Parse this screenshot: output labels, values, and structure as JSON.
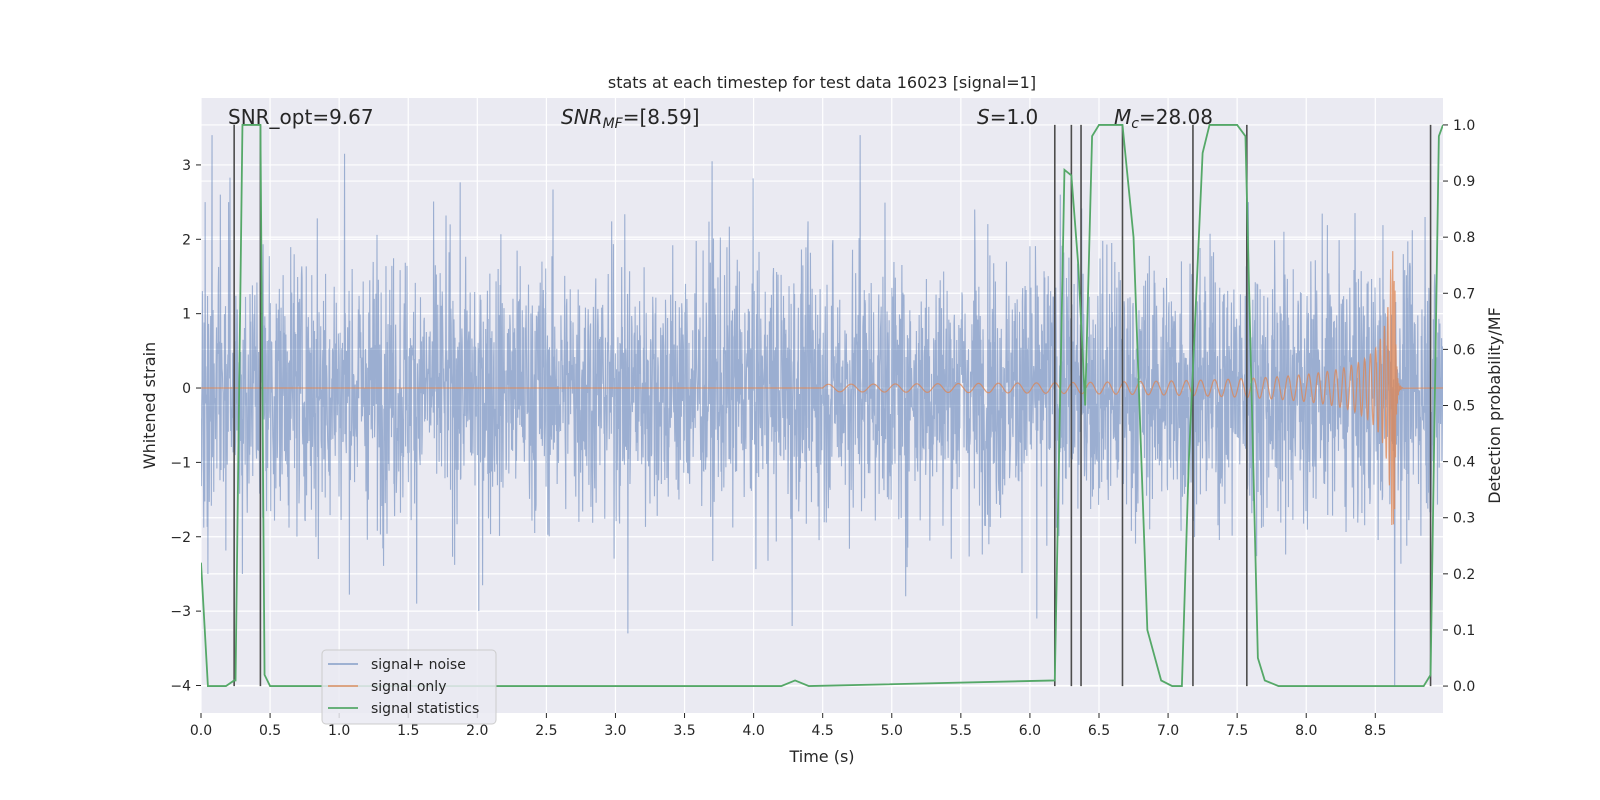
{
  "chart_data": {
    "type": "line",
    "title": "stats at each timestep for test data 16023 [signal=1]",
    "xlabel": "Time (s)",
    "ylabel": "Whitened strain",
    "y2label": "Detection probability/MF",
    "xlim": [
      0.0,
      8.99
    ],
    "ylim": [
      -4.37,
      3.9
    ],
    "y2lim": [
      -0.048,
      1.048
    ],
    "xticks": [
      "0.0",
      "0.5",
      "1.0",
      "1.5",
      "2.0",
      "2.5",
      "3.0",
      "3.5",
      "4.0",
      "4.5",
      "5.0",
      "5.5",
      "6.0",
      "6.5",
      "7.0",
      "7.5",
      "8.0",
      "8.5"
    ],
    "xtick_values": [
      0.0,
      0.5,
      1.0,
      1.5,
      2.0,
      2.5,
      3.0,
      3.5,
      4.0,
      4.5,
      5.0,
      5.5,
      6.0,
      6.5,
      7.0,
      7.5,
      8.0,
      8.5
    ],
    "yticks": [
      "3",
      "2",
      "1",
      "0",
      "−1",
      "−2",
      "−3",
      "−4"
    ],
    "ytick_values": [
      3,
      2,
      1,
      0,
      -1,
      -2,
      -3,
      -4
    ],
    "y2ticks": [
      "1.0",
      "0.9",
      "0.8",
      "0.7",
      "0.6",
      "0.5",
      "0.4",
      "0.3",
      "0.2",
      "0.1",
      "0.0"
    ],
    "y2tick_values": [
      1.0,
      0.9,
      0.8,
      0.7,
      0.6,
      0.5,
      0.4,
      0.3,
      0.2,
      0.1,
      0.0
    ],
    "annotations": {
      "snr_opt": "SNR_opt=9.67",
      "snr_mf_symbol": "SNR",
      "snr_mf_sub": "MF",
      "snr_mf_value": "=[8.59]",
      "s_symbol": "S",
      "s_value": "=1.0",
      "mc_symbol": "M",
      "mc_sub": "c",
      "mc_value": "=28.08"
    },
    "legend": {
      "placement": "lower-left",
      "entries": [
        "signal+ noise",
        "signal only",
        "signal statistics"
      ]
    },
    "series": [
      {
        "name": "signal+ noise",
        "color": "#4c72b0",
        "kind": "noise",
        "approx_envelope": 2.0,
        "peaks": [
          {
            "x": 0.03,
            "y": 2.5
          },
          {
            "x": 0.08,
            "y": 3.4
          },
          {
            "x": 0.14,
            "y": 2.6
          },
          {
            "x": 0.2,
            "y": 2.5
          },
          {
            "x": 0.3,
            "y": 3.5
          },
          {
            "x": 0.43,
            "y": 3.5
          },
          {
            "x": 1.04,
            "y": 3.15
          },
          {
            "x": 3.7,
            "y": 3.05
          },
          {
            "x": 4.77,
            "y": 3.4
          },
          {
            "x": 5.6,
            "y": 2.4
          },
          {
            "x": 6.05,
            "y": 3.5
          },
          {
            "x": 6.22,
            "y": 2.6
          },
          {
            "x": 7.58,
            "y": 2.5
          },
          {
            "x": 8.86,
            "y": 2.3
          },
          {
            "x": 3.09,
            "y": -3.3
          },
          {
            "x": 4.28,
            "y": -3.2
          },
          {
            "x": 2.01,
            "y": -3.0
          },
          {
            "x": 1.56,
            "y": -2.9
          },
          {
            "x": 8.64,
            "y": -4.0
          },
          {
            "x": 0.05,
            "y": -2.5
          },
          {
            "x": 0.3,
            "y": -2.5
          },
          {
            "x": 5.1,
            "y": -2.8
          },
          {
            "x": 6.05,
            "y": -3.1
          },
          {
            "x": 0.85,
            "y": -2.3
          }
        ]
      },
      {
        "name": "signal only",
        "color": "#dd8452",
        "kind": "chirp",
        "start_x": 4.5,
        "merger_x": 8.64,
        "peak_amplitude": 1.85
      },
      {
        "name": "signal statistics",
        "color": "#55a868",
        "axis": "y2",
        "x": [
          0.0,
          0.05,
          0.18,
          0.24,
          0.25,
          0.3,
          0.38,
          0.43,
          0.46,
          0.5,
          4.2,
          4.3,
          4.4,
          6.18,
          6.25,
          6.3,
          6.35,
          6.4,
          6.45,
          6.5,
          6.6,
          6.67,
          6.75,
          6.85,
          6.95,
          7.03,
          7.1,
          7.15,
          7.25,
          7.3,
          7.4,
          7.5,
          7.56,
          7.65,
          7.7,
          7.8,
          8.0,
          8.5,
          8.85,
          8.9,
          8.96,
          8.99
        ],
        "values": [
          0.22,
          0.0,
          0.0,
          0.01,
          0.01,
          1.0,
          1.0,
          1.0,
          0.02,
          0.0,
          0.0,
          0.01,
          0.0,
          0.01,
          0.92,
          0.91,
          0.75,
          0.5,
          0.98,
          1.0,
          1.0,
          1.0,
          0.8,
          0.1,
          0.01,
          0.0,
          0.0,
          0.4,
          0.95,
          1.0,
          1.0,
          1.0,
          0.98,
          0.05,
          0.01,
          0.0,
          0.0,
          0.0,
          0.0,
          0.02,
          0.98,
          1.0
        ]
      },
      {
        "name": "detection markers",
        "color": "#4d4d4d",
        "kind": "vlines",
        "x": [
          0.24,
          0.43,
          6.18,
          6.3,
          6.37,
          6.67,
          7.18,
          7.57,
          8.9
        ],
        "ymin": 0.0,
        "ymax": 1.0
      }
    ]
  }
}
